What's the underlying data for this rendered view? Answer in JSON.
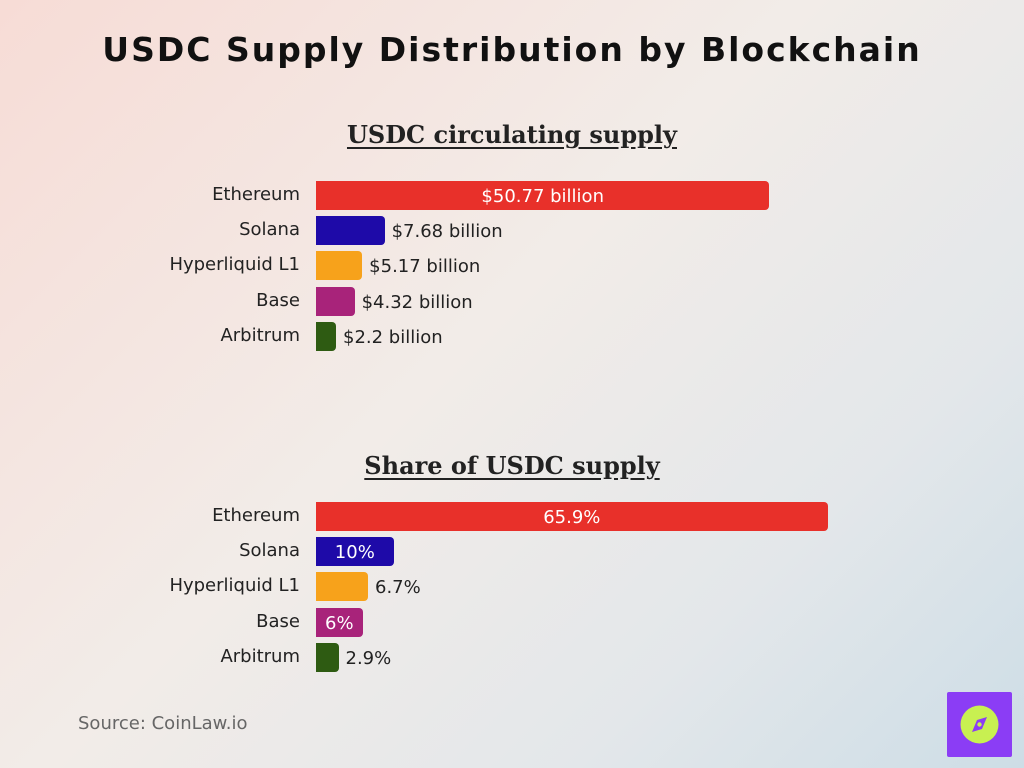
{
  "title": "USDC Supply Distribution by Blockchain",
  "source": "Source: CoinLaw.io",
  "colors": {
    "Ethereum": "#e8302a",
    "Solana": "#1e0aa8",
    "Hyperliquid L1": "#f7a21b",
    "Base": "#a8237a",
    "Arbitrum": "#2e5b12"
  },
  "logo": {
    "icon": "compass-icon",
    "bg": "#8b3df5",
    "fg": "#c8f051"
  },
  "chart_data": [
    {
      "type": "bar",
      "orientation": "horizontal",
      "title": "USDC circulating supply",
      "categories": [
        "Ethereum",
        "Solana",
        "Hyperliquid L1",
        "Base",
        "Arbitrum"
      ],
      "values": [
        50.77,
        7.68,
        5.17,
        4.32,
        2.2
      ],
      "labels": [
        "$50.77 billion",
        "$7.68 billion",
        "$5.17 billion",
        "$4.32 billion",
        "$2.2 billion"
      ],
      "unit": "billion USD",
      "xlim": [
        0,
        58
      ]
    },
    {
      "type": "bar",
      "orientation": "horizontal",
      "title": "Share of USDC supply",
      "categories": [
        "Ethereum",
        "Solana",
        "Hyperliquid L1",
        "Base",
        "Arbitrum"
      ],
      "values": [
        65.9,
        10,
        6.7,
        6,
        2.9
      ],
      "labels": [
        "65.9%",
        "10%",
        "6.7%",
        "6%",
        "2.9%"
      ],
      "unit": "%",
      "xlim": [
        0,
        66.6
      ]
    }
  ]
}
